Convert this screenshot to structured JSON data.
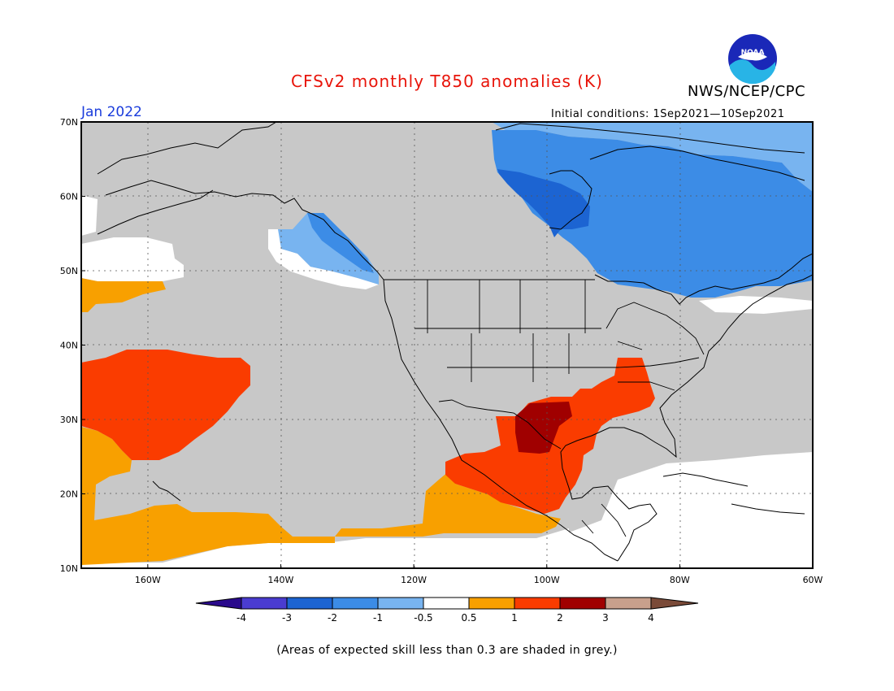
{
  "title": "CFSv2 monthly T850 anomalies (K)",
  "org": "NWS/NCEP/CPC",
  "logo_text": "NOAA",
  "month": "Jan 2022",
  "initial_conditions": "Initial conditions: 1Sep2021—10Sep2021",
  "note": "(Areas of expected skill less than 0.3 are shaded in grey.)",
  "axes": {
    "lon": {
      "min": -170,
      "max": -60,
      "ticks": [
        -160,
        -140,
        -120,
        -100,
        -80,
        -60
      ],
      "labels": [
        "160W",
        "140W",
        "120W",
        "100W",
        "80W",
        "60W"
      ]
    },
    "lat": {
      "min": 10,
      "max": 70,
      "ticks": [
        10,
        20,
        30,
        40,
        50,
        60,
        70
      ],
      "labels": [
        "10N",
        "20N",
        "30N",
        "40N",
        "50N",
        "60N",
        "70N"
      ]
    }
  },
  "colorbar": {
    "boundaries": [
      "-4",
      "-3",
      "-2",
      "-1",
      "-0.5",
      "0.5",
      "1",
      "2",
      "3",
      "4"
    ],
    "colors": [
      "#2a0a8c",
      "#4a3cd0",
      "#1c64d2",
      "#3c8ce6",
      "#78b4f0",
      "#ffffff",
      "#f8a000",
      "#fa3c00",
      "#a00000",
      "#c8a08c",
      "#7a4a38"
    ]
  },
  "colors": {
    "skill_mask_grey": "#c8c8c8",
    "map_lines": "#000000"
  },
  "anomaly_regions": [
    {
      "name": "canada-cold",
      "category": "-2 to -1"
    },
    {
      "name": "hudson-bay-core-cold",
      "category": "-3 to -2"
    },
    {
      "name": "northern-edge-cool",
      "category": "-1 to -0.5"
    },
    {
      "name": "alaska-panhandle-cool",
      "category": "-1 to -0.5"
    },
    {
      "name": "central-pacific-warm",
      "category": "1 to 2"
    },
    {
      "name": "gulf-coast-warm",
      "category": "1 to 2"
    },
    {
      "name": "texas-core-warm",
      "category": "2 to 3"
    },
    {
      "name": "tropical-pacific-warm",
      "category": "0.5 to 1"
    }
  ]
}
